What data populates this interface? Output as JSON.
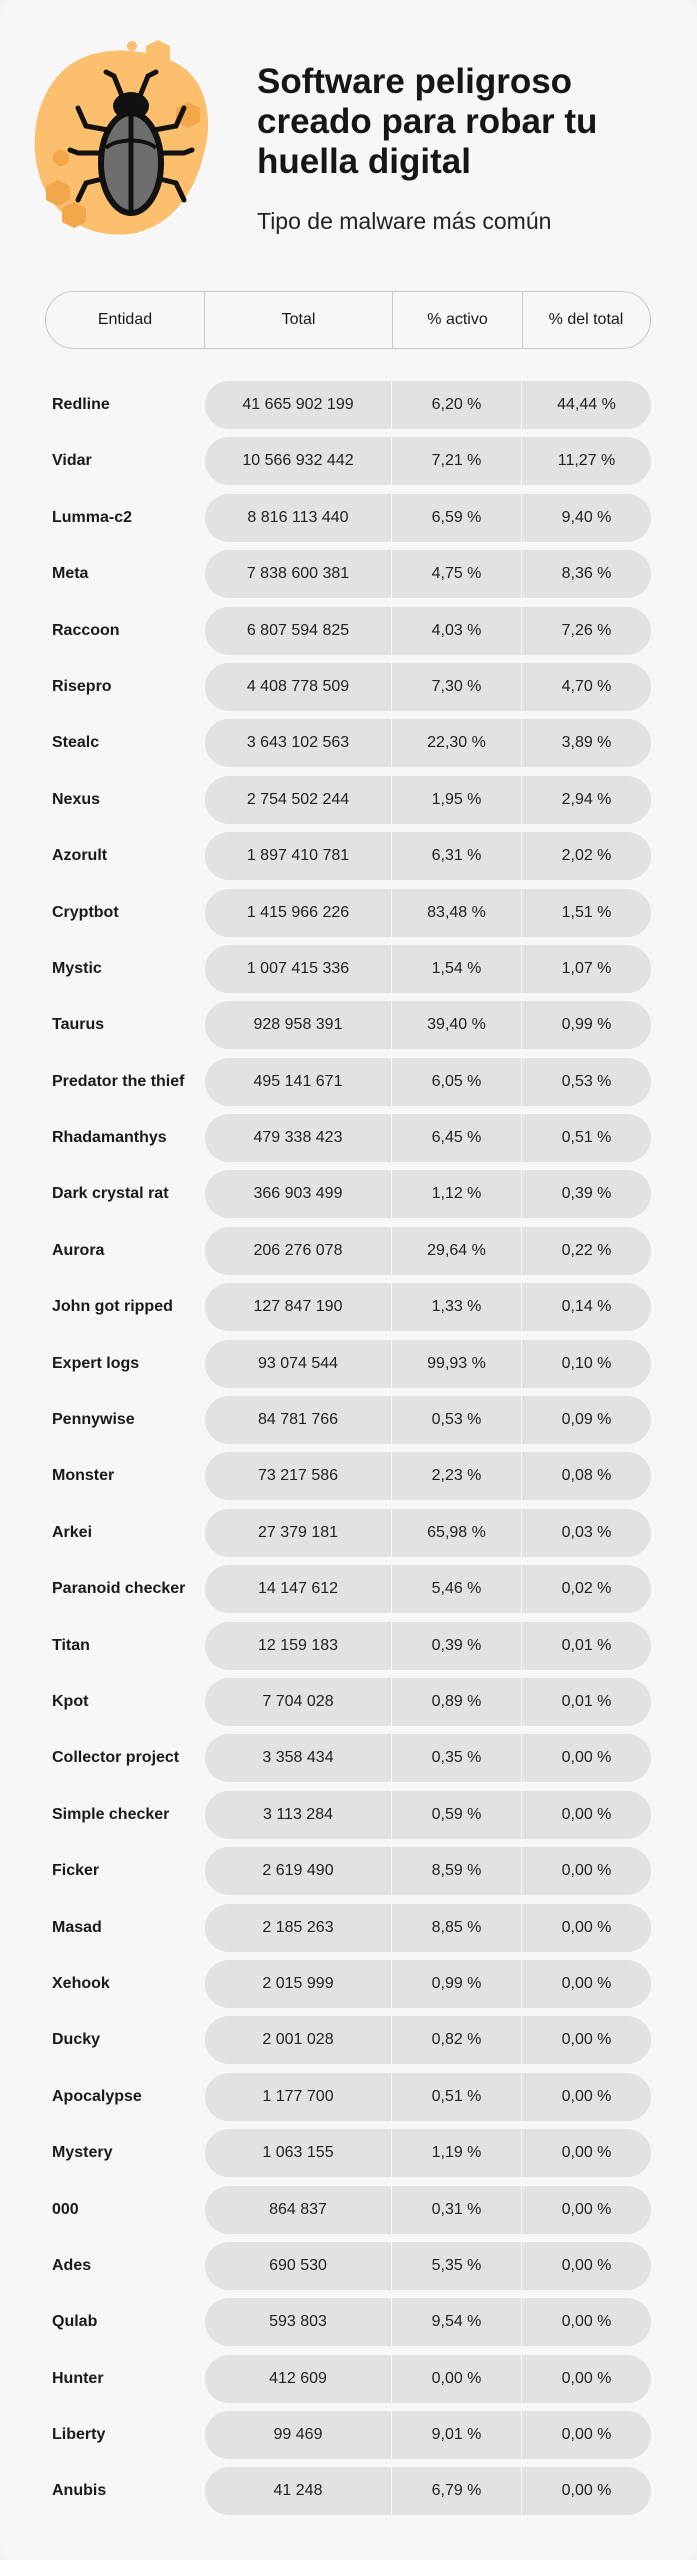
{
  "header": {
    "title": "Software peligroso creado para robar tu huella digital",
    "subtitle": "Tipo de malware más común",
    "illustration_icon": "bug-icon",
    "colors": {
      "blob": "#fbbf6e",
      "blob_dark": "#f4a64a",
      "bug_body": "#6e6e6e",
      "bug_outline": "#111111"
    }
  },
  "table": {
    "columns": [
      "Entidad",
      "Total",
      "% activo",
      "% del total"
    ],
    "rows": [
      {
        "entity": "Redline",
        "total": "41 665 902 199",
        "active": "6,20 %",
        "share": "44,44 %"
      },
      {
        "entity": "Vidar",
        "total": "10 566 932 442",
        "active": "7,21 %",
        "share": "11,27 %"
      },
      {
        "entity": "Lumma-c2",
        "total": "8 816 113 440",
        "active": "6,59 %",
        "share": "9,40 %"
      },
      {
        "entity": "Meta",
        "total": "7 838 600 381",
        "active": "4,75 %",
        "share": "8,36 %"
      },
      {
        "entity": "Raccoon",
        "total": "6 807 594 825",
        "active": "4,03 %",
        "share": "7,26 %"
      },
      {
        "entity": "Risepro",
        "total": "4 408 778 509",
        "active": "7,30 %",
        "share": "4,70 %"
      },
      {
        "entity": "Stealc",
        "total": "3 643 102 563",
        "active": "22,30 %",
        "share": "3,89 %"
      },
      {
        "entity": "Nexus",
        "total": "2 754 502 244",
        "active": "1,95 %",
        "share": "2,94 %"
      },
      {
        "entity": "Azorult",
        "total": "1 897 410 781",
        "active": "6,31 %",
        "share": "2,02 %"
      },
      {
        "entity": "Cryptbot",
        "total": "1 415 966 226",
        "active": "83,48 %",
        "share": "1,51 %"
      },
      {
        "entity": "Mystic",
        "total": "1 007 415 336",
        "active": "1,54 %",
        "share": "1,07 %"
      },
      {
        "entity": "Taurus",
        "total": "928 958 391",
        "active": "39,40 %",
        "share": "0,99 %"
      },
      {
        "entity": "Predator the thief",
        "total": "495 141 671",
        "active": "6,05 %",
        "share": "0,53 %"
      },
      {
        "entity": "Rhadamanthys",
        "total": "479 338 423",
        "active": "6,45 %",
        "share": "0,51 %"
      },
      {
        "entity": "Dark crystal rat",
        "total": "366 903 499",
        "active": "1,12 %",
        "share": "0,39 %"
      },
      {
        "entity": "Aurora",
        "total": "206 276 078",
        "active": "29,64 %",
        "share": "0,22 %"
      },
      {
        "entity": "John got ripped",
        "total": "127 847 190",
        "active": "1,33 %",
        "share": "0,14 %"
      },
      {
        "entity": "Expert logs",
        "total": "93 074 544",
        "active": "99,93 %",
        "share": "0,10 %"
      },
      {
        "entity": "Pennywise",
        "total": "84 781 766",
        "active": "0,53 %",
        "share": "0,09 %"
      },
      {
        "entity": "Monster",
        "total": "73 217 586",
        "active": "2,23 %",
        "share": "0,08 %"
      },
      {
        "entity": "Arkei",
        "total": "27 379 181",
        "active": "65,98 %",
        "share": "0,03 %"
      },
      {
        "entity": "Paranoid checker",
        "total": "14 147 612",
        "active": "5,46 %",
        "share": "0,02 %"
      },
      {
        "entity": "Titan",
        "total": "12 159 183",
        "active": "0,39 %",
        "share": "0,01 %"
      },
      {
        "entity": "Kpot",
        "total": "7 704 028",
        "active": "0,89 %",
        "share": "0,01 %"
      },
      {
        "entity": "Collector project",
        "total": "3 358 434",
        "active": "0,35 %",
        "share": "0,00 %"
      },
      {
        "entity": "Simple checker",
        "total": "3 113 284",
        "active": "0,59 %",
        "share": "0,00 %"
      },
      {
        "entity": "Ficker",
        "total": "2 619 490",
        "active": "8,59 %",
        "share": "0,00 %"
      },
      {
        "entity": "Masad",
        "total": "2 185 263",
        "active": "8,85 %",
        "share": "0,00 %"
      },
      {
        "entity": "Xehook",
        "total": "2 015 999",
        "active": "0,99 %",
        "share": "0,00 %"
      },
      {
        "entity": "Ducky",
        "total": "2 001 028",
        "active": "0,82 %",
        "share": "0,00 %"
      },
      {
        "entity": "Apocalypse",
        "total": "1 177 700",
        "active": "0,51 %",
        "share": "0,00 %"
      },
      {
        "entity": "Mystery",
        "total": "1 063 155",
        "active": "1,19 %",
        "share": "0,00 %"
      },
      {
        "entity": "000",
        "total": "864 837",
        "active": "0,31 %",
        "share": "0,00 %"
      },
      {
        "entity": "Ades",
        "total": "690 530",
        "active": "5,35 %",
        "share": "0,00 %"
      },
      {
        "entity": "Qulab",
        "total": "593 803",
        "active": "9,54 %",
        "share": "0,00 %"
      },
      {
        "entity": "Hunter",
        "total": "412 609",
        "active": "0,00 %",
        "share": "0,00 %"
      },
      {
        "entity": "Liberty",
        "total": "99 469",
        "active": "9,01 %",
        "share": "0,00 %"
      },
      {
        "entity": "Anubis",
        "total": "41 248",
        "active": "6,79 %",
        "share": "0,00 %"
      }
    ]
  }
}
